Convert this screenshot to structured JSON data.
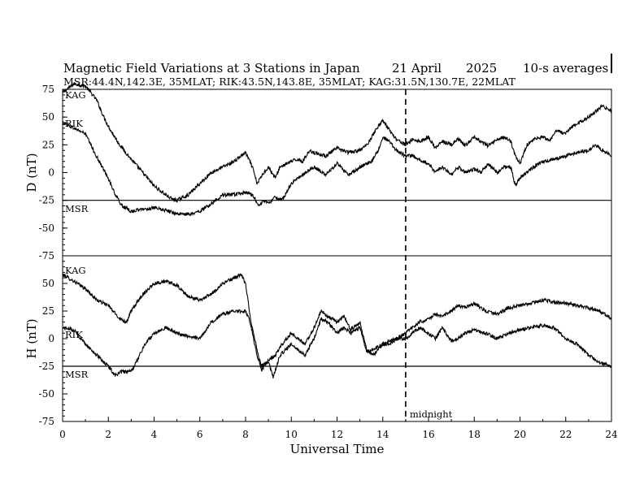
{
  "chart_data": [
    {
      "type": "line",
      "title": "Magnetic Field Variations at 3 Stations in Japan",
      "date_text": "21 April",
      "year_text": "2025",
      "avg_text": "10-s averages",
      "subtitle": "MSR:44.4N,142.3E, 35MLAT;  RIK:43.5N,143.8E, 35MLAT;  KAG:31.5N,130.7E, 22MLAT",
      "ylabel": "D (nT)",
      "ylim": [
        -75,
        75
      ],
      "yticks": [
        75,
        50,
        25,
        0,
        -25,
        -50,
        -75
      ],
      "xlim": [
        0,
        24
      ],
      "grid": false,
      "station_labels": [
        "KAG",
        "RIK",
        "MSR"
      ],
      "reference_line": -25,
      "series": [
        {
          "name": "KAG",
          "x": [
            0,
            0.5,
            1,
            1.2,
            1.5,
            1.8,
            2.1,
            2.5,
            3,
            3.5,
            4,
            4.5,
            4.8,
            5,
            5.5,
            6,
            6.5,
            7,
            7.5,
            7.8,
            8,
            8.3,
            8.5,
            8.8,
            9,
            9.3,
            9.5,
            10,
            10.3,
            10.5,
            10.8,
            11,
            11.5,
            12,
            12.5,
            13,
            13.3,
            13.6,
            13.8,
            14,
            14.3,
            14.6,
            15,
            15.3,
            15.6,
            16,
            16.3,
            16.6,
            17,
            17.3,
            17.6,
            18,
            18.3,
            18.6,
            19,
            19.3,
            19.6,
            19.8,
            20,
            20.3,
            20.6,
            21,
            21.3,
            21.6,
            22,
            22.3,
            22.6,
            23,
            23.3,
            23.6,
            24
          ],
          "values": [
            72,
            80,
            78,
            73,
            65,
            50,
            38,
            25,
            12,
            0,
            -12,
            -20,
            -24,
            -25,
            -20,
            -10,
            0,
            5,
            10,
            15,
            18,
            5,
            -10,
            0,
            5,
            -5,
            5,
            10,
            12,
            10,
            20,
            18,
            15,
            22,
            18,
            20,
            25,
            35,
            42,
            47,
            38,
            30,
            25,
            30,
            28,
            32,
            22,
            28,
            25,
            30,
            24,
            32,
            28,
            24,
            30,
            32,
            28,
            15,
            8,
            25,
            30,
            32,
            28,
            38,
            35,
            42,
            45,
            50,
            55,
            60,
            55
          ]
        },
        {
          "name": "RIK",
          "x": [
            0,
            0.5,
            1,
            1.3,
            1.6,
            2,
            2.3,
            2.6,
            3,
            3.5,
            4,
            4.5,
            5,
            5.5,
            6,
            6.5,
            7,
            7.5,
            8,
            8.3,
            8.6,
            8.8,
            9,
            9.3,
            9.6,
            10,
            10.3,
            10.6,
            11,
            11.5,
            12,
            12.5,
            13,
            13.5,
            13.8,
            14,
            14.3,
            14.6,
            15,
            15.3,
            15.6,
            16,
            16.3,
            16.6,
            17,
            17.3,
            17.6,
            18,
            18.3,
            18.6,
            19,
            19.3,
            19.6,
            19.8,
            20,
            20.3,
            20.6,
            21,
            21.5,
            22,
            22.5,
            23,
            23.3,
            23.6,
            24
          ],
          "values": [
            45,
            40,
            35,
            22,
            10,
            -5,
            -20,
            -30,
            -35,
            -33,
            -32,
            -34,
            -37,
            -38,
            -35,
            -28,
            -20,
            -20,
            -18,
            -20,
            -30,
            -25,
            -28,
            -22,
            -25,
            -10,
            -5,
            0,
            5,
            -2,
            8,
            -2,
            5,
            10,
            20,
            32,
            28,
            20,
            15,
            15,
            12,
            8,
            0,
            5,
            -2,
            5,
            0,
            3,
            0,
            8,
            0,
            5,
            5,
            -12,
            -5,
            0,
            5,
            10,
            12,
            15,
            18,
            20,
            25,
            20,
            15
          ]
        },
        {
          "name": "MSR",
          "x": [
            0,
            24
          ],
          "values": [
            -25,
            -25
          ]
        }
      ]
    },
    {
      "type": "line",
      "ylabel": "H (nT)",
      "ylim": [
        -75,
        75
      ],
      "yticks": [
        50,
        25,
        0,
        -25,
        -50,
        -75
      ],
      "xlabel": "Universal Time",
      "xlim": [
        0,
        24
      ],
      "xticks": [
        0,
        2,
        4,
        6,
        8,
        10,
        12,
        14,
        16,
        18,
        20,
        22,
        24
      ],
      "grid": false,
      "station_labels": [
        "KAG",
        "RIK",
        "MSR"
      ],
      "reference_line": -25,
      "vline_x": 15,
      "vline_label": "midnight",
      "series": [
        {
          "name": "KAG",
          "x": [
            0,
            0.5,
            1,
            1.5,
            2,
            2.5,
            2.8,
            3,
            3.5,
            4,
            4.5,
            5,
            5.5,
            6,
            6.5,
            7,
            7.5,
            7.8,
            8,
            8.2,
            8.5,
            8.7,
            9,
            9.3,
            9.6,
            10,
            10.3,
            10.6,
            11,
            11.3,
            11.6,
            12,
            12.3,
            12.6,
            13,
            13.3,
            13.6,
            14,
            14.3,
            14.6,
            15,
            15.3,
            15.6,
            16,
            16.3,
            16.6,
            17,
            17.3,
            17.6,
            18,
            18.5,
            19,
            19.5,
            20,
            20.5,
            21,
            21.5,
            22,
            22.5,
            23,
            23.5,
            24
          ],
          "values": [
            58,
            52,
            45,
            35,
            30,
            18,
            15,
            25,
            40,
            50,
            52,
            48,
            38,
            35,
            40,
            50,
            55,
            58,
            50,
            20,
            -10,
            -25,
            -20,
            -15,
            -5,
            5,
            0,
            -5,
            10,
            25,
            20,
            15,
            20,
            8,
            15,
            -10,
            -15,
            -5,
            -5,
            0,
            5,
            10,
            15,
            18,
            22,
            20,
            25,
            30,
            28,
            32,
            25,
            22,
            28,
            30,
            32,
            35,
            33,
            32,
            30,
            28,
            25,
            18
          ]
        },
        {
          "name": "RIK",
          "x": [
            0,
            0.5,
            1,
            1.5,
            2,
            2.3,
            2.6,
            3,
            3.3,
            3.6,
            4,
            4.5,
            5,
            5.5,
            6,
            6.5,
            7,
            7.5,
            8,
            8.2,
            8.5,
            8.7,
            9,
            9.2,
            9.5,
            10,
            10.3,
            10.6,
            11,
            11.3,
            11.6,
            12,
            12.3,
            12.6,
            13,
            13.3,
            13.6,
            14,
            14.3,
            14.6,
            15,
            15.3,
            15.6,
            16,
            16.3,
            16.6,
            17,
            17.3,
            17.6,
            18,
            18.5,
            19,
            19.5,
            20,
            20.5,
            21,
            21.5,
            22,
            22.5,
            23,
            23.5,
            24
          ],
          "values": [
            10,
            8,
            -5,
            -15,
            -25,
            -33,
            -30,
            -30,
            -18,
            -5,
            5,
            10,
            5,
            2,
            0,
            15,
            22,
            25,
            25,
            15,
            -15,
            -28,
            -20,
            -35,
            -15,
            -5,
            -10,
            -15,
            0,
            18,
            15,
            5,
            10,
            5,
            10,
            -12,
            -10,
            -5,
            -2,
            0,
            0,
            5,
            10,
            5,
            0,
            10,
            -2,
            0,
            5,
            8,
            5,
            0,
            5,
            8,
            10,
            12,
            10,
            0,
            -5,
            -15,
            -22,
            -25
          ]
        },
        {
          "name": "MSR",
          "x": [
            0,
            24
          ],
          "values": [
            -25,
            -25
          ]
        }
      ]
    }
  ]
}
